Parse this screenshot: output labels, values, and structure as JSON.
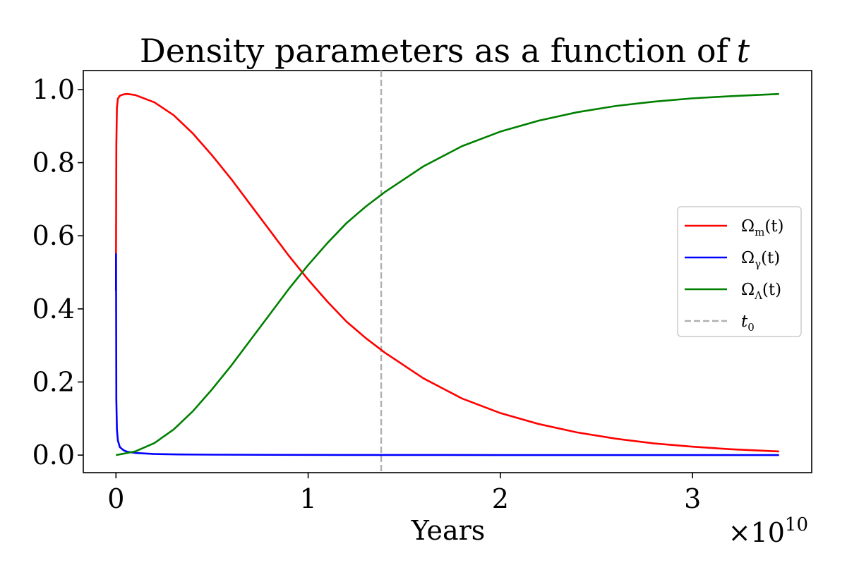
{
  "chart_data": {
    "type": "line",
    "title": "Density parameters as a function of",
    "title_variable": "t",
    "xlabel": "Years",
    "ylabel": "",
    "x_scale_factor": 10000000000.0,
    "x_scale_label_prefix": "×10",
    "x_scale_label_exponent": "10",
    "xlim": [
      -1700000000.0,
      36200000000.0
    ],
    "ylim": [
      -0.048,
      1.052
    ],
    "x_ticks": [
      0,
      10000000000.0,
      20000000000.0,
      30000000000.0
    ],
    "x_tick_labels": [
      "0",
      "1",
      "2",
      "3"
    ],
    "y_ticks": [
      0.0,
      0.2,
      0.4,
      0.6,
      0.8,
      1.0
    ],
    "y_tick_labels": [
      "0.0",
      "0.2",
      "0.4",
      "0.6",
      "0.8",
      "1.0"
    ],
    "grid": false,
    "legend_position": "center-right",
    "vline": {
      "x": 13800000000.0,
      "color": "#b0b0b0",
      "style": "dashed",
      "label": "t0"
    },
    "series": [
      {
        "name": "Ωm(t)",
        "label_main": "Ω",
        "label_sub": "m",
        "label_arg": "(t)",
        "color": "#ff0000",
        "x": [
          0,
          3000000.0,
          20000000.0,
          50000000.0,
          100000000.0,
          200000000.0,
          400000000.0,
          600000000.0,
          1000000000.0,
          2000000000.0,
          3000000000.0,
          4000000000.0,
          5000000000.0,
          6000000000.0,
          7000000000.0,
          8000000000.0,
          9000000000.0,
          10000000000.0,
          11000000000.0,
          12000000000.0,
          13000000000.0,
          14000000000.0,
          15000000000.0,
          16000000000.0,
          18000000000.0,
          20000000000.0,
          22000000000.0,
          24000000000.0,
          26000000000.0,
          28000000000.0,
          30000000000.0,
          32000000000.0,
          34500000000.0
        ],
        "y": [
          0.45,
          0.55,
          0.85,
          0.95,
          0.975,
          0.983,
          0.987,
          0.988,
          0.985,
          0.965,
          0.93,
          0.88,
          0.82,
          0.755,
          0.685,
          0.615,
          0.545,
          0.48,
          0.42,
          0.365,
          0.32,
          0.28,
          0.245,
          0.21,
          0.155,
          0.115,
          0.085,
          0.062,
          0.045,
          0.032,
          0.023,
          0.016,
          0.01
        ]
      },
      {
        "name": "Ωγ(t)",
        "label_main": "Ω",
        "label_sub": "γ",
        "label_arg": "(t)",
        "color": "#0000ff",
        "x": [
          0,
          3000000.0,
          20000000.0,
          50000000.0,
          100000000.0,
          200000000.0,
          400000000.0,
          600000000.0,
          1000000000.0,
          2000000000.0,
          3000000000.0,
          5000000000.0,
          8000000000.0,
          12000000000.0,
          20000000000.0,
          30000000000.0,
          34500000000.0
        ],
        "y": [
          0.45,
          0.55,
          0.15,
          0.07,
          0.04,
          0.022,
          0.013,
          0.009,
          0.006,
          0.003,
          0.002,
          0.0012,
          0.0007,
          0.0004,
          0.0002,
          0.0001,
          0.0001
        ]
      },
      {
        "name": "ΩΛ(t)",
        "label_main": "Ω",
        "label_sub": "Λ",
        "label_arg": "(t)",
        "color": "#008000",
        "x": [
          0,
          1000000000.0,
          2000000000.0,
          3000000000.0,
          4000000000.0,
          5000000000.0,
          6000000000.0,
          7000000000.0,
          8000000000.0,
          9000000000.0,
          10000000000.0,
          11000000000.0,
          12000000000.0,
          13000000000.0,
          14000000000.0,
          15000000000.0,
          16000000000.0,
          18000000000.0,
          20000000000.0,
          22000000000.0,
          24000000000.0,
          26000000000.0,
          28000000000.0,
          30000000000.0,
          32000000000.0,
          34500000000.0
        ],
        "y": [
          0.0,
          0.01,
          0.033,
          0.07,
          0.12,
          0.18,
          0.245,
          0.315,
          0.385,
          0.455,
          0.52,
          0.58,
          0.635,
          0.68,
          0.72,
          0.755,
          0.79,
          0.845,
          0.885,
          0.915,
          0.938,
          0.955,
          0.967,
          0.976,
          0.982,
          0.988
        ]
      }
    ]
  }
}
